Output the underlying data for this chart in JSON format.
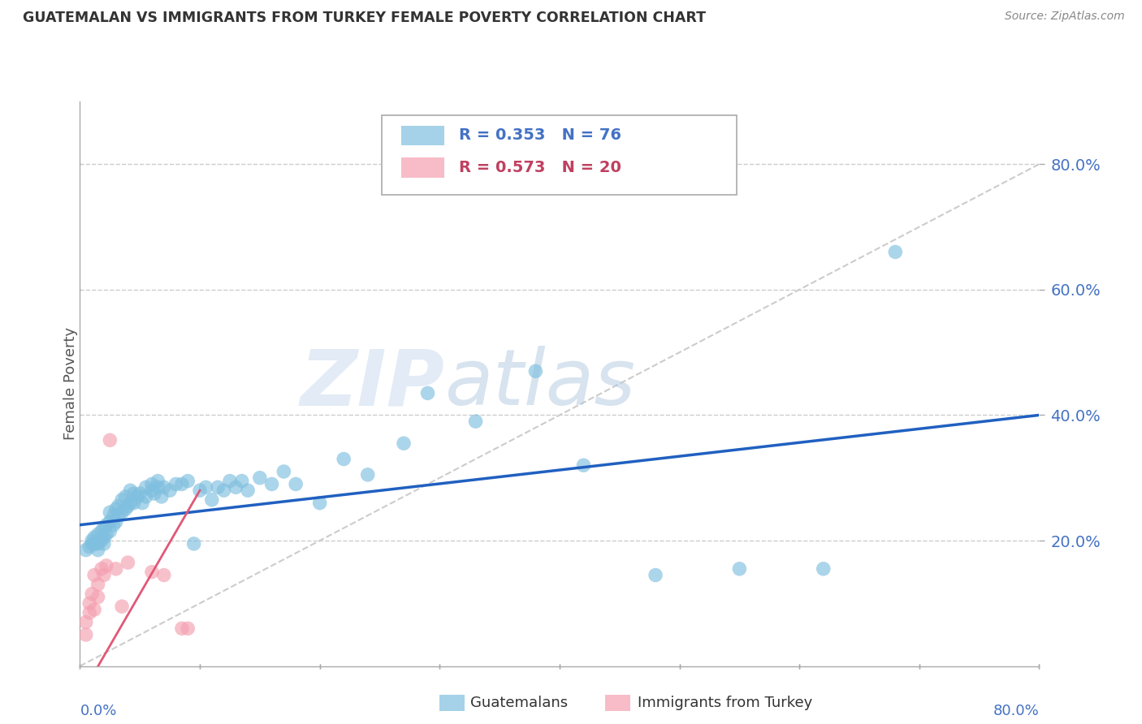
{
  "title": "GUATEMALAN VS IMMIGRANTS FROM TURKEY FEMALE POVERTY CORRELATION CHART",
  "source": "Source: ZipAtlas.com",
  "ylabel": "Female Poverty",
  "ytick_values": [
    0.2,
    0.4,
    0.6,
    0.8
  ],
  "xlim": [
    0.0,
    0.8
  ],
  "ylim": [
    0.0,
    0.9
  ],
  "legend1_R": "0.353",
  "legend1_N": "76",
  "legend2_R": "0.573",
  "legend2_N": "20",
  "guatemalan_color": "#7fbfdf",
  "turkey_color": "#f4a0b0",
  "regression_blue": "#2060c0",
  "regression_pink": "#e05878",
  "diagonal_color": "#cccccc",
  "watermark_zip": "ZIP",
  "watermark_atlas": "atlas",
  "guatemalan_x": [
    0.005,
    0.008,
    0.01,
    0.01,
    0.012,
    0.012,
    0.015,
    0.015,
    0.015,
    0.018,
    0.018,
    0.02,
    0.02,
    0.02,
    0.022,
    0.022,
    0.025,
    0.025,
    0.025,
    0.028,
    0.028,
    0.03,
    0.03,
    0.032,
    0.032,
    0.035,
    0.035,
    0.038,
    0.038,
    0.04,
    0.042,
    0.042,
    0.045,
    0.045,
    0.048,
    0.05,
    0.052,
    0.055,
    0.055,
    0.06,
    0.06,
    0.062,
    0.065,
    0.065,
    0.068,
    0.07,
    0.075,
    0.08,
    0.085,
    0.09,
    0.095,
    0.1,
    0.105,
    0.11,
    0.115,
    0.12,
    0.125,
    0.13,
    0.135,
    0.14,
    0.15,
    0.16,
    0.17,
    0.18,
    0.2,
    0.22,
    0.24,
    0.27,
    0.29,
    0.33,
    0.38,
    0.42,
    0.48,
    0.55,
    0.62,
    0.68
  ],
  "guatemalan_y": [
    0.185,
    0.19,
    0.195,
    0.2,
    0.195,
    0.205,
    0.185,
    0.195,
    0.21,
    0.2,
    0.215,
    0.195,
    0.205,
    0.22,
    0.21,
    0.225,
    0.215,
    0.23,
    0.245,
    0.225,
    0.24,
    0.23,
    0.25,
    0.24,
    0.255,
    0.245,
    0.265,
    0.25,
    0.27,
    0.255,
    0.26,
    0.28,
    0.26,
    0.275,
    0.27,
    0.275,
    0.26,
    0.27,
    0.285,
    0.28,
    0.29,
    0.275,
    0.285,
    0.295,
    0.27,
    0.285,
    0.28,
    0.29,
    0.29,
    0.295,
    0.195,
    0.28,
    0.285,
    0.265,
    0.285,
    0.28,
    0.295,
    0.285,
    0.295,
    0.28,
    0.3,
    0.29,
    0.31,
    0.29,
    0.26,
    0.33,
    0.305,
    0.355,
    0.435,
    0.39,
    0.47,
    0.32,
    0.145,
    0.155,
    0.155,
    0.66
  ],
  "turkey_x": [
    0.005,
    0.005,
    0.008,
    0.008,
    0.01,
    0.012,
    0.012,
    0.015,
    0.015,
    0.018,
    0.02,
    0.022,
    0.025,
    0.03,
    0.035,
    0.04,
    0.06,
    0.07,
    0.085,
    0.09
  ],
  "turkey_y": [
    0.05,
    0.07,
    0.085,
    0.1,
    0.115,
    0.09,
    0.145,
    0.11,
    0.13,
    0.155,
    0.145,
    0.16,
    0.36,
    0.155,
    0.095,
    0.165,
    0.15,
    0.145,
    0.06,
    0.06
  ]
}
